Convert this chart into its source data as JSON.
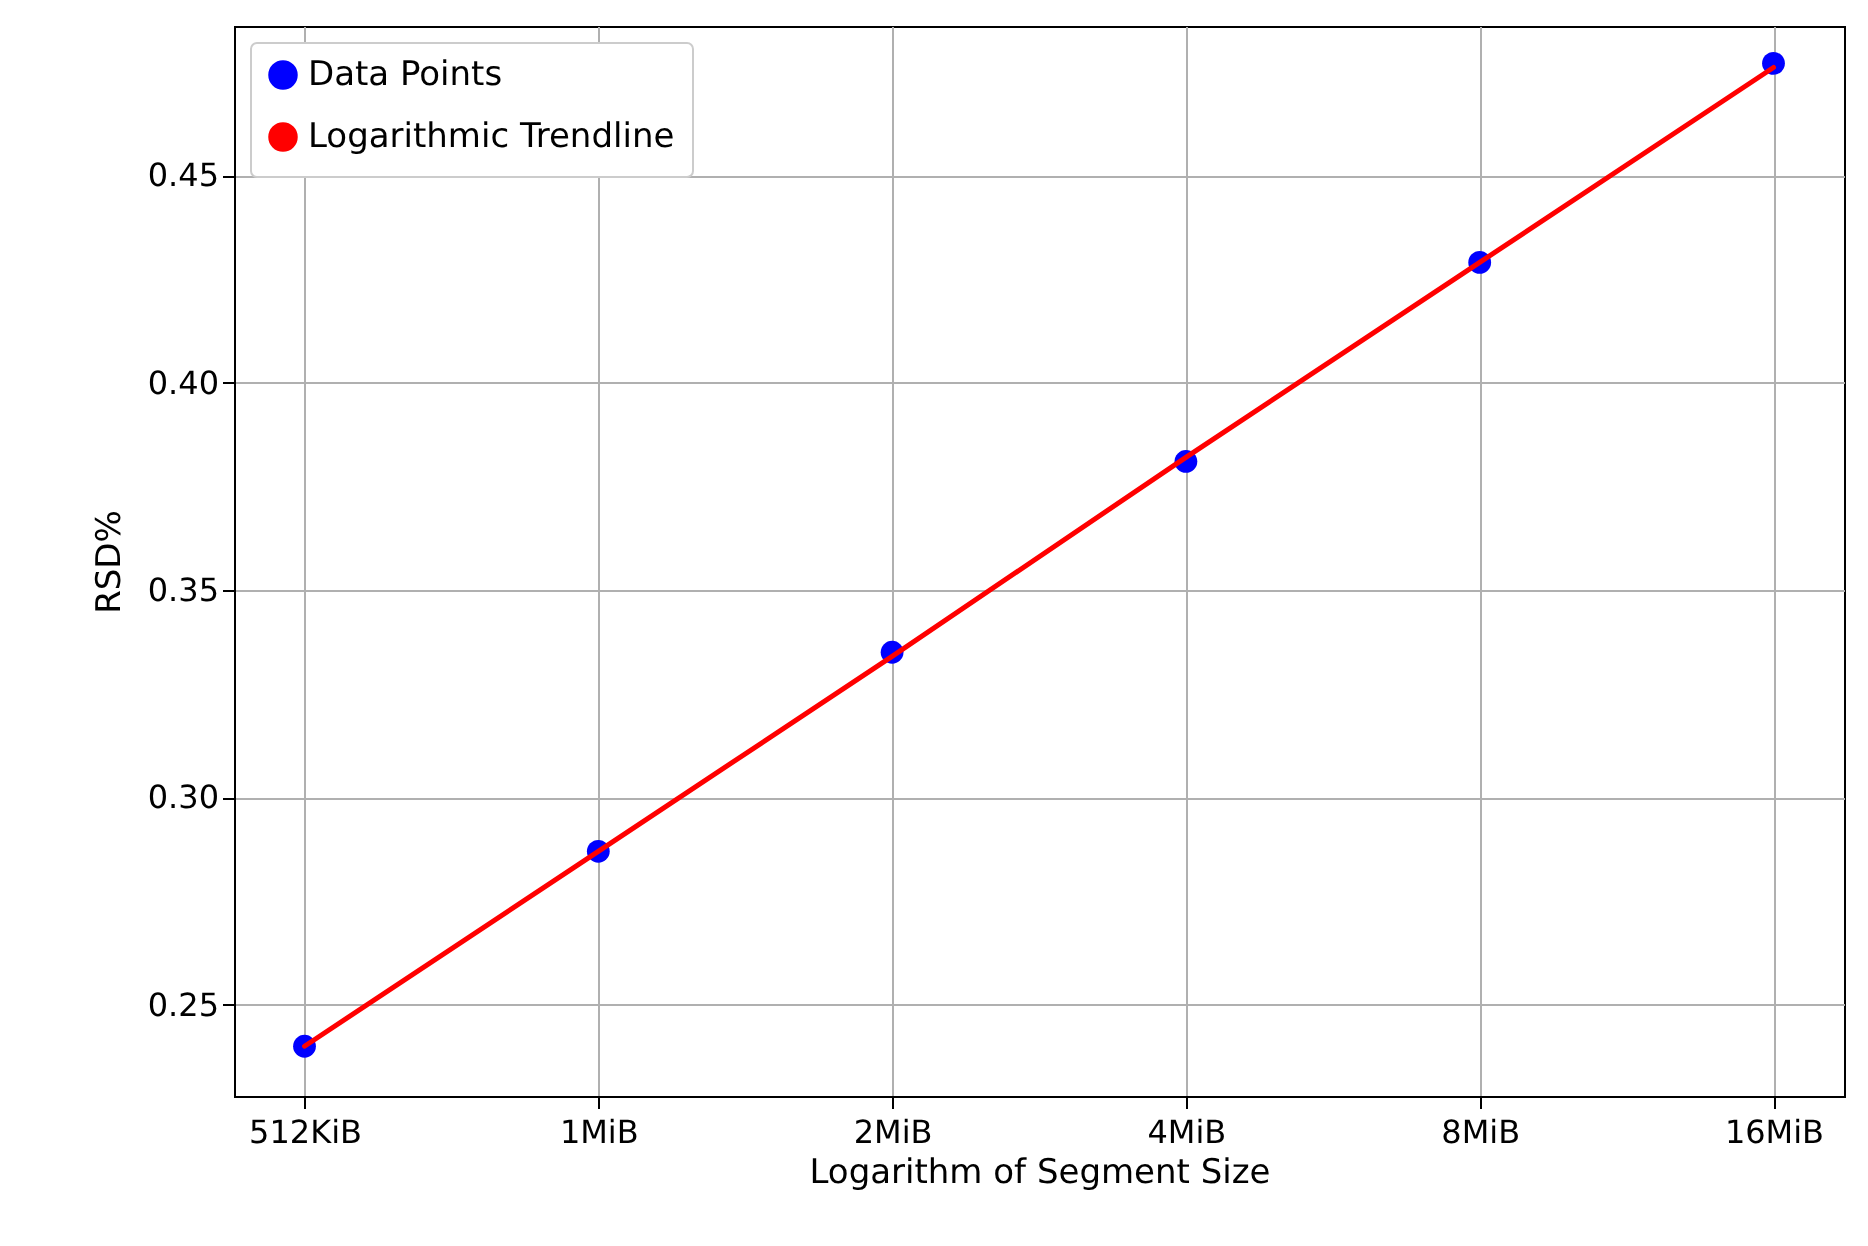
{
  "chart_data": {
    "type": "scatter",
    "xlabel": "Logarithm of Segment Size",
    "ylabel": "RSD%",
    "categories": [
      "512KiB",
      "1MiB",
      "2MiB",
      "4MiB",
      "8MiB",
      "16MiB"
    ],
    "series": [
      {
        "name": "Data Points",
        "color": "#0000ff",
        "values": [
          0.24,
          0.287,
          0.335,
          0.381,
          0.429,
          0.477
        ]
      },
      {
        "name": "Logarithmic Trendline",
        "type": "line",
        "color": "#ff0000",
        "values": [
          0.24,
          0.287,
          0.334,
          0.382,
          0.429,
          0.476
        ]
      }
    ],
    "ylim": [
      0.228,
      0.486
    ],
    "yticks": [
      0.25,
      {
        "value": 0.3,
        "label": "0.30"
      },
      0.35,
      {
        "value": 0.4,
        "label": "0.40"
      },
      0.45
    ],
    "grid": true,
    "legend": "top left",
    "line_style": "solid"
  }
}
